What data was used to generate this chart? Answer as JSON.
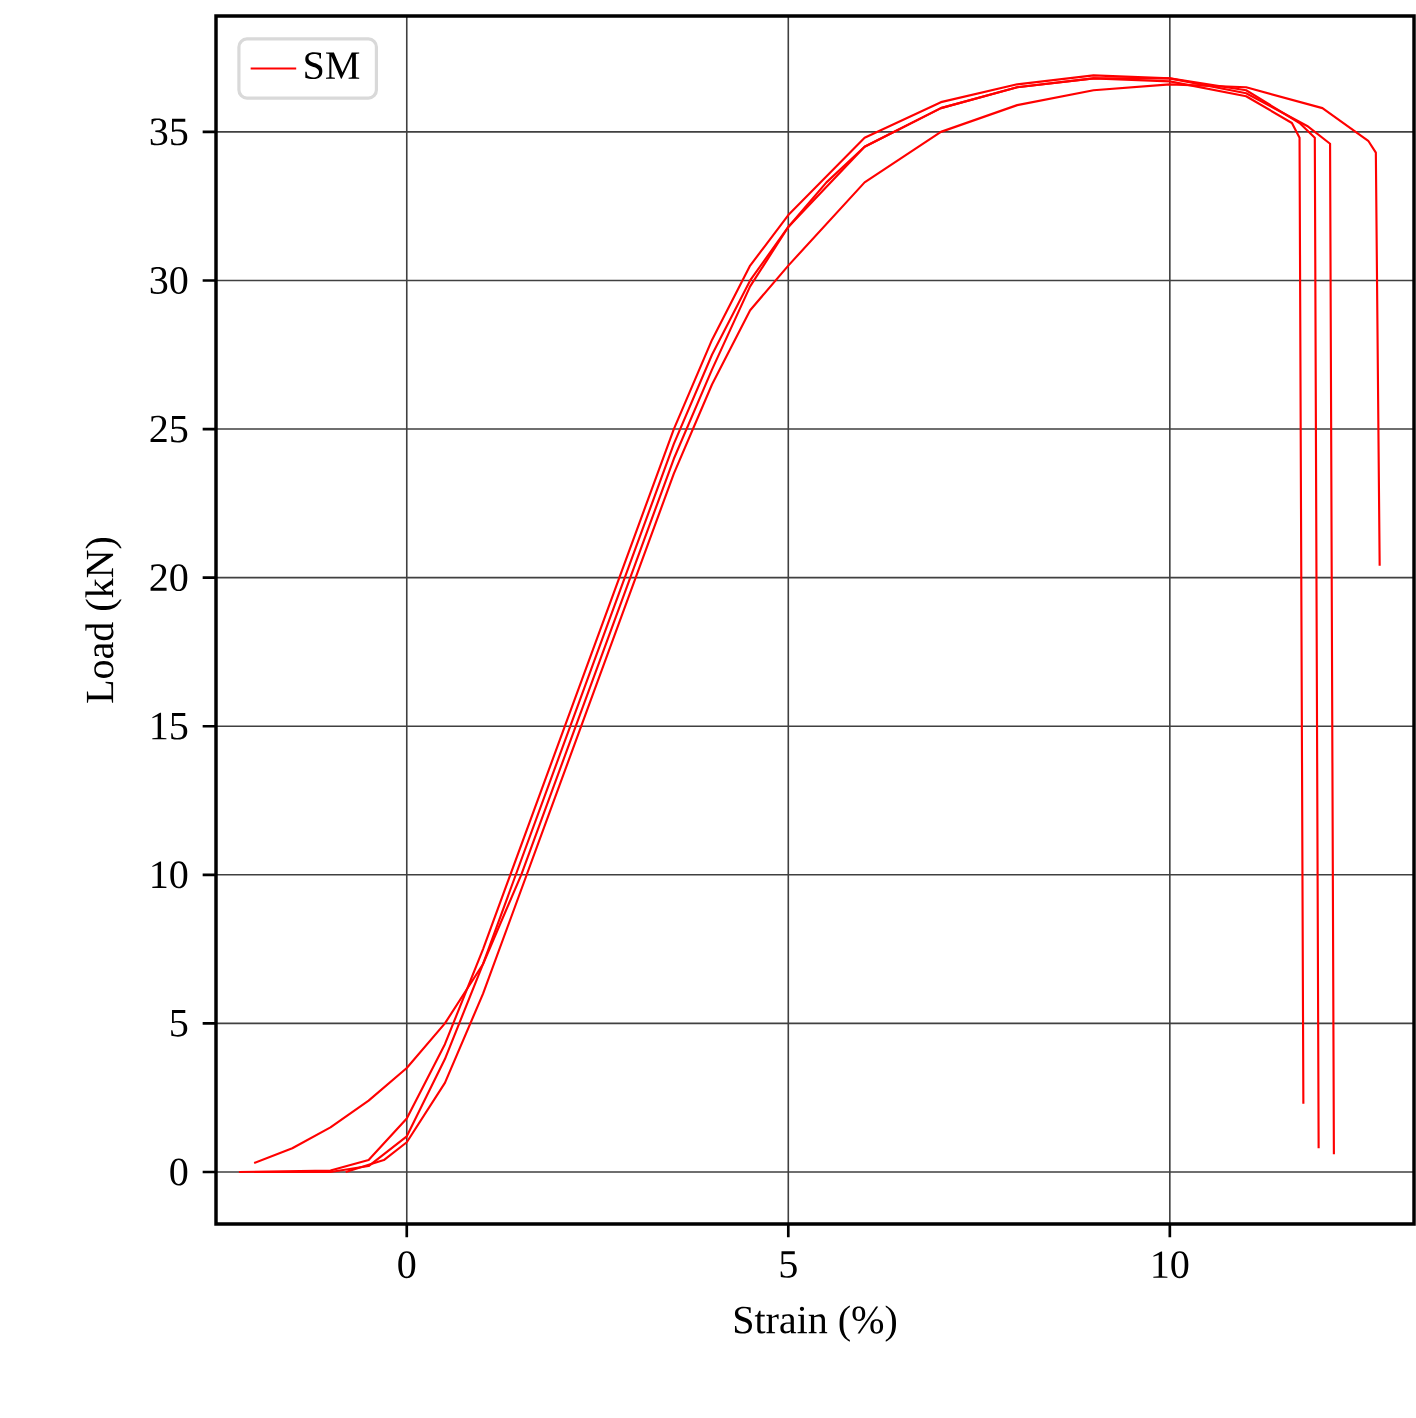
{
  "chart_data": {
    "type": "line",
    "xlabel": "Strain (%)",
    "ylabel": "Load (kN)",
    "xlim": [
      -2.5,
      13.2
    ],
    "ylim": [
      -1.75,
      38.9
    ],
    "xticks": [
      0,
      5,
      10
    ],
    "yticks": [
      0,
      5,
      10,
      15,
      20,
      25,
      30,
      35
    ],
    "grid": true,
    "legend": "top left",
    "marker": "none",
    "line_style": "solid",
    "series": [
      {
        "name": "SM",
        "color": "#ff0000",
        "x": [
          -2.0,
          -1.5,
          -1,
          -0.5,
          0,
          0.5,
          1,
          1.5,
          2,
          2.5,
          3,
          3.5,
          4,
          4.5,
          5,
          5.5,
          6,
          7,
          8,
          9,
          10,
          11,
          11.6,
          11.7,
          11.75
        ],
        "values": [
          0.3,
          0.8,
          1.5,
          2.4,
          3.5,
          5,
          7,
          10,
          13.5,
          17,
          20.5,
          24,
          27,
          29.8,
          31.8,
          33.3,
          34.5,
          35.8,
          36.5,
          36.8,
          36.7,
          36.2,
          35.3,
          34.8,
          2.3
        ]
      },
      {
        "color": "#ff0000",
        "x": [
          -2.2,
          -1,
          -0.5,
          0,
          0.5,
          1,
          1.5,
          2,
          2.5,
          3,
          3.5,
          4,
          4.5,
          5,
          6,
          7,
          8,
          9,
          10,
          11,
          11.8,
          12.1,
          12.15
        ],
        "values": [
          0,
          0.05,
          0.4,
          1.8,
          4.3,
          7.5,
          11,
          14.5,
          18,
          21.5,
          25,
          28,
          30.5,
          32.2,
          34.8,
          36,
          36.6,
          36.9,
          36.8,
          36.3,
          35.2,
          34.6,
          0.6
        ]
      },
      {
        "color": "#ff0000",
        "x": [
          -2,
          -1,
          -0.5,
          0,
          0.5,
          1,
          1.5,
          2,
          2.5,
          3,
          3.5,
          4,
          4.5,
          5,
          6,
          7,
          8,
          9,
          10,
          11,
          11.7,
          11.9,
          11.95
        ],
        "values": [
          0,
          0,
          0.2,
          1.2,
          3.8,
          7,
          10.5,
          14,
          17.5,
          21,
          24.5,
          27.5,
          30,
          31.8,
          34.5,
          35.8,
          36.5,
          36.8,
          36.8,
          36.4,
          35.3,
          34.8,
          0.8
        ]
      },
      {
        "color": "#ff0000",
        "x": [
          -0.8,
          -0.3,
          0,
          0.5,
          1,
          1.5,
          2,
          2.5,
          3,
          3.5,
          4,
          4.5,
          5,
          6,
          7,
          8,
          9,
          10,
          11,
          12,
          12.6,
          12.7,
          12.75
        ],
        "values": [
          0,
          0.4,
          1,
          3,
          6,
          9.5,
          13,
          16.5,
          20,
          23.5,
          26.5,
          29,
          30.5,
          33.3,
          35,
          35.9,
          36.4,
          36.6,
          36.5,
          35.8,
          34.7,
          34.3,
          20.4
        ]
      }
    ]
  }
}
